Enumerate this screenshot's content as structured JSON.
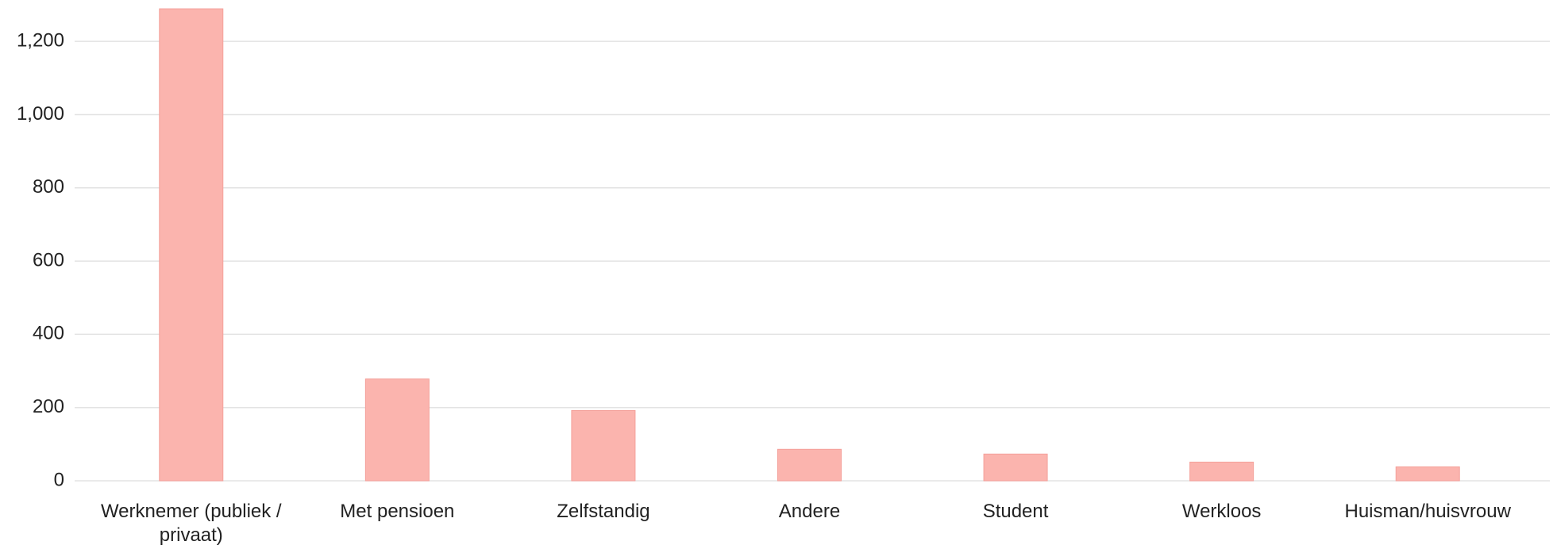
{
  "chart_data": {
    "type": "bar",
    "categories": [
      "Werknemer (publiek / privaat)",
      "Met pensioen",
      "Zelfstandig",
      "Andere",
      "Student",
      "Werkloos",
      "Huisman/huisvrouw"
    ],
    "values": [
      1289,
      278,
      192,
      86,
      73,
      51,
      38
    ],
    "color": "#fbb4ae",
    "ylim": [
      0,
      1300
    ],
    "yticks": [
      0,
      200,
      400,
      600,
      800,
      {
        "value": 1000,
        "label": "1,000"
      },
      {
        "value": 1200,
        "label": "1,200"
      }
    ],
    "grid": true
  }
}
